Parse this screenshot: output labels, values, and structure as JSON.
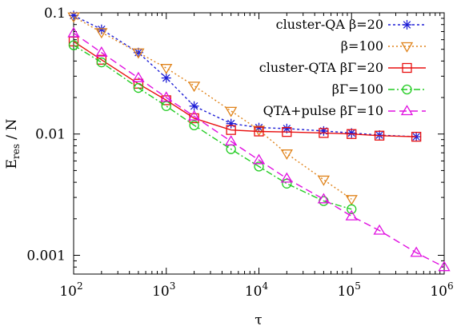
{
  "chart_data": {
    "type": "line",
    "x_scale": "log",
    "y_scale": "log",
    "xlim": [
      100,
      1000000
    ],
    "ylim": [
      0.0007,
      0.1
    ],
    "xlabel": "τ",
    "ylabel_main": "E",
    "ylabel_sub": "res",
    "ylabel_rest": " / N",
    "x_ticks": [
      {
        "value": 100,
        "base": "10",
        "exp": "2"
      },
      {
        "value": 1000,
        "base": "10",
        "exp": "3"
      },
      {
        "value": 10000,
        "base": "10",
        "exp": "4"
      },
      {
        "value": 100000,
        "base": "10",
        "exp": "5"
      },
      {
        "value": 1000000,
        "base": "10",
        "exp": "6"
      }
    ],
    "y_ticks": [
      {
        "value": 0.1,
        "label": "0.1"
      },
      {
        "value": 0.01,
        "label": "0.01"
      },
      {
        "value": 0.001,
        "label": "0.001"
      }
    ],
    "legend_position": "top-right",
    "series": [
      {
        "name": "cluster-QA β=20",
        "color": "#1f1fd6",
        "marker": "star",
        "dash": "3,3",
        "x": [
          100,
          200,
          500,
          1000,
          2000,
          5000,
          10000,
          20000,
          50000,
          100000,
          200000,
          500000
        ],
        "y": [
          0.095,
          0.073,
          0.047,
          0.029,
          0.017,
          0.0122,
          0.0113,
          0.0111,
          0.0106,
          0.0102,
          0.0098,
          0.0095
        ]
      },
      {
        "name": "β=100",
        "color": "#e0841c",
        "marker": "triangle-down",
        "dash": "2,3",
        "x": [
          100,
          200,
          500,
          1000,
          2000,
          5000,
          10000,
          20000,
          50000,
          100000
        ],
        "y": [
          0.093,
          0.069,
          0.047,
          0.035,
          0.025,
          0.0155,
          0.0108,
          0.0069,
          0.0042,
          0.0029
        ]
      },
      {
        "name": "cluster-QTA βΓ=20",
        "color": "#e81010",
        "marker": "square",
        "dash": "",
        "x": [
          100,
          200,
          500,
          1000,
          2000,
          5000,
          10000,
          20000,
          50000,
          100000,
          200000,
          500000
        ],
        "y": [
          0.058,
          0.041,
          0.026,
          0.019,
          0.0135,
          0.0108,
          0.0105,
          0.0104,
          0.0102,
          0.01,
          0.0097,
          0.0095
        ]
      },
      {
        "name": "βΓ=100",
        "color": "#22cc22",
        "marker": "circle",
        "dash": "8,3,2,3",
        "x": [
          100,
          200,
          500,
          1000,
          2000,
          5000,
          10000,
          20000,
          50000,
          100000
        ],
        "y": [
          0.054,
          0.039,
          0.024,
          0.017,
          0.0118,
          0.0075,
          0.0054,
          0.0039,
          0.0028,
          0.0024
        ]
      },
      {
        "name": "QTA+pulse βΓ=10",
        "color": "#e010e0",
        "marker": "triangle-up",
        "dash": "9,5",
        "x": [
          100,
          200,
          500,
          1000,
          2000,
          5000,
          10000,
          20000,
          50000,
          100000,
          200000,
          500000,
          1000000
        ],
        "y": [
          0.068,
          0.047,
          0.029,
          0.02,
          0.014,
          0.0087,
          0.0061,
          0.0043,
          0.0029,
          0.0021,
          0.0016,
          0.00105,
          0.0008
        ]
      }
    ]
  }
}
